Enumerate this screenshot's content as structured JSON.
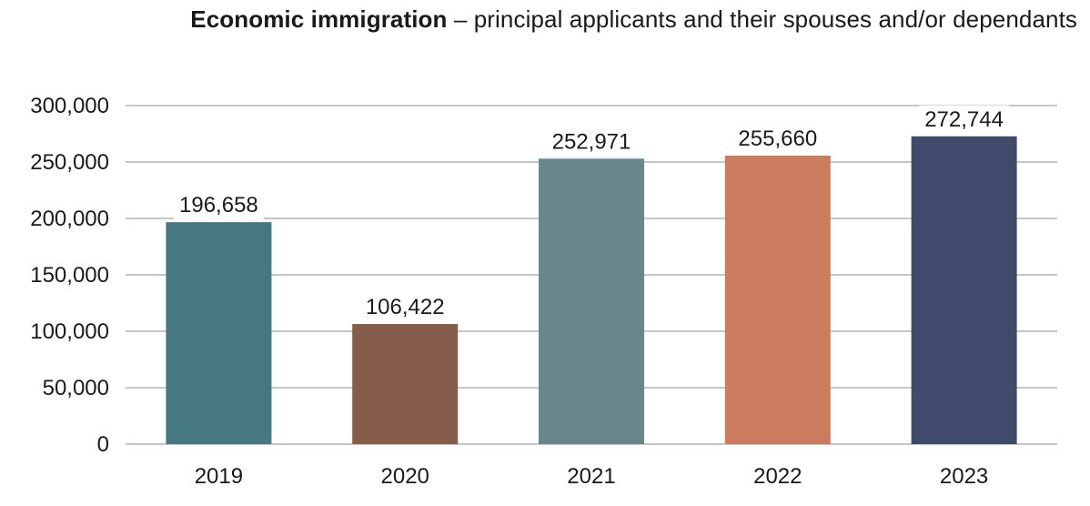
{
  "chart_data": {
    "type": "bar",
    "title": "Economic immigration",
    "subtitle": "– principal applicants and their spouses and/or dependants",
    "categories": [
      "2019",
      "2020",
      "2021",
      "2022",
      "2023"
    ],
    "values": [
      196658,
      106422,
      252971,
      255660,
      272744
    ],
    "value_labels": [
      "196,658",
      "106,422",
      "252,971",
      "255,660",
      "272,744"
    ],
    "bar_colors": [
      "#467882",
      "#855c4a",
      "#6a858b",
      "#cc7c5e",
      "#3f4a6c"
    ],
    "xlabel": "",
    "ylabel": "",
    "ylim": [
      0,
      300000
    ],
    "yticks": [
      0,
      50000,
      100000,
      150000,
      200000,
      250000,
      300000
    ],
    "ytick_labels": [
      "0",
      "50,000",
      "100,000",
      "150,000",
      "200,000",
      "250,000",
      "300,000"
    ],
    "grid": true,
    "legend": "none"
  }
}
